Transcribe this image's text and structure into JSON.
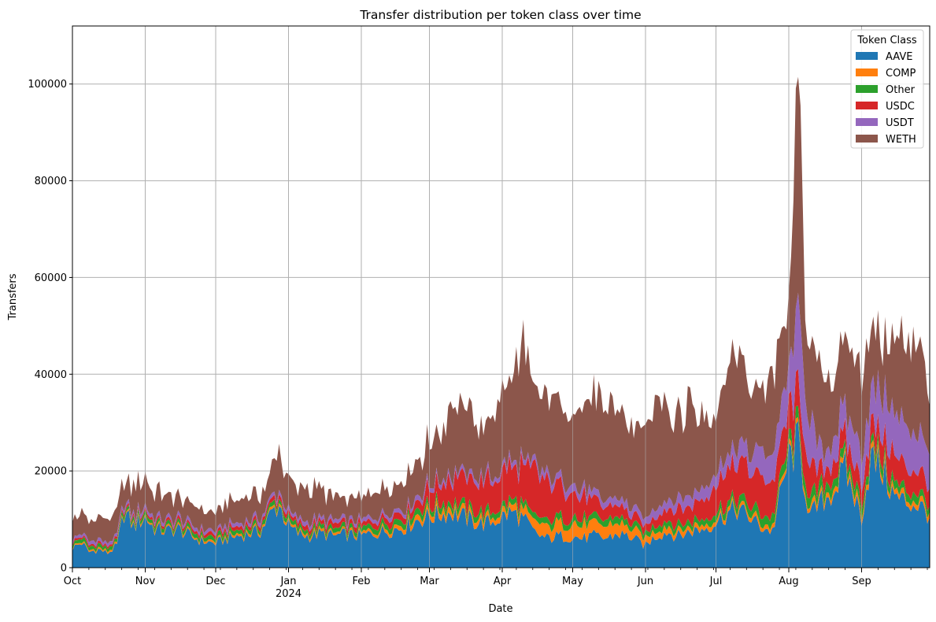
{
  "chart_data": {
    "type": "area",
    "stacked": true,
    "title": "Transfer distribution per token class over time",
    "xlabel": "Date",
    "ylabel": "Transfers",
    "x_range": [
      "2023-10-01",
      "2024-09-30"
    ],
    "ylim": [
      0,
      112000
    ],
    "grid": true,
    "legend": {
      "title": "Token Class",
      "placement": "top-right"
    },
    "y_ticks": [
      0,
      20000,
      40000,
      60000,
      80000,
      100000
    ],
    "y_tick_labels": [
      "0",
      "20000",
      "40000",
      "60000",
      "80000",
      "100000"
    ],
    "x_ticks": [
      {
        "date": "2023-10-01",
        "label": "Oct",
        "sublabel": ""
      },
      {
        "date": "2023-11-01",
        "label": "Nov",
        "sublabel": ""
      },
      {
        "date": "2023-12-01",
        "label": "Dec",
        "sublabel": ""
      },
      {
        "date": "2024-01-01",
        "label": "Jan",
        "sublabel": "2024"
      },
      {
        "date": "2024-02-01",
        "label": "Feb",
        "sublabel": ""
      },
      {
        "date": "2024-03-01",
        "label": "Mar",
        "sublabel": ""
      },
      {
        "date": "2024-04-01",
        "label": "Apr",
        "sublabel": ""
      },
      {
        "date": "2024-05-01",
        "label": "May",
        "sublabel": ""
      },
      {
        "date": "2024-06-01",
        "label": "Jun",
        "sublabel": ""
      },
      {
        "date": "2024-07-01",
        "label": "Jul",
        "sublabel": ""
      },
      {
        "date": "2024-08-01",
        "label": "Aug",
        "sublabel": ""
      },
      {
        "date": "2024-09-01",
        "label": "Sep",
        "sublabel": ""
      }
    ],
    "series": [
      {
        "name": "AAVE",
        "color": "#1f77b4",
        "points": [
          [
            "2023-10-01",
            4000
          ],
          [
            "2023-10-05",
            5200
          ],
          [
            "2023-10-08",
            3200
          ],
          [
            "2023-10-12",
            3800
          ],
          [
            "2023-10-16",
            3000
          ],
          [
            "2023-10-20",
            4500
          ],
          [
            "2023-10-23",
            11500
          ],
          [
            "2023-10-27",
            8500
          ],
          [
            "2023-11-01",
            10500
          ],
          [
            "2023-11-05",
            8000
          ],
          [
            "2023-11-10",
            7500
          ],
          [
            "2023-11-15",
            8000
          ],
          [
            "2023-11-20",
            6500
          ],
          [
            "2023-11-25",
            5500
          ],
          [
            "2023-12-01",
            5000
          ],
          [
            "2023-12-05",
            5800
          ],
          [
            "2023-12-10",
            6500
          ],
          [
            "2023-12-15",
            7000
          ],
          [
            "2023-12-20",
            7500
          ],
          [
            "2023-12-25",
            11500
          ],
          [
            "2023-12-28",
            13000
          ],
          [
            "2024-01-01",
            8500
          ],
          [
            "2024-01-05",
            7000
          ],
          [
            "2024-01-10",
            6500
          ],
          [
            "2024-01-15",
            7000
          ],
          [
            "2024-01-20",
            6500
          ],
          [
            "2024-01-25",
            6800
          ],
          [
            "2024-02-01",
            6500
          ],
          [
            "2024-02-05",
            7000
          ],
          [
            "2024-02-10",
            7500
          ],
          [
            "2024-02-15",
            8000
          ],
          [
            "2024-02-20",
            8500
          ],
          [
            "2024-02-25",
            10000
          ],
          [
            "2024-03-01",
            10500
          ],
          [
            "2024-03-05",
            11000
          ],
          [
            "2024-03-10",
            11500
          ],
          [
            "2024-03-15",
            10500
          ],
          [
            "2024-03-20",
            9500
          ],
          [
            "2024-03-25",
            9000
          ],
          [
            "2024-04-01",
            10500
          ],
          [
            "2024-04-05",
            11500
          ],
          [
            "2024-04-10",
            10000
          ],
          [
            "2024-04-15",
            7000
          ],
          [
            "2024-04-20",
            6000
          ],
          [
            "2024-04-25",
            6500
          ],
          [
            "2024-05-01",
            6500
          ],
          [
            "2024-05-05",
            6000
          ],
          [
            "2024-05-10",
            6500
          ],
          [
            "2024-05-15",
            6000
          ],
          [
            "2024-05-20",
            7000
          ],
          [
            "2024-05-25",
            6500
          ],
          [
            "2024-06-01",
            4500
          ],
          [
            "2024-06-05",
            6500
          ],
          [
            "2024-06-10",
            7500
          ],
          [
            "2024-06-15",
            6500
          ],
          [
            "2024-06-20",
            7500
          ],
          [
            "2024-06-25",
            8000
          ],
          [
            "2024-07-01",
            9500
          ],
          [
            "2024-07-05",
            11000
          ],
          [
            "2024-07-10",
            12000
          ],
          [
            "2024-07-15",
            10500
          ],
          [
            "2024-07-20",
            8500
          ],
          [
            "2024-07-25",
            7500
          ],
          [
            "2024-08-01",
            22500
          ],
          [
            "2024-08-05",
            25500
          ],
          [
            "2024-08-10",
            10500
          ],
          [
            "2024-08-15",
            13500
          ],
          [
            "2024-08-20",
            16000
          ],
          [
            "2024-08-25",
            20000
          ],
          [
            "2024-09-01",
            10500
          ],
          [
            "2024-09-05",
            22500
          ],
          [
            "2024-09-10",
            20000
          ],
          [
            "2024-09-15",
            14500
          ],
          [
            "2024-09-20",
            13500
          ],
          [
            "2024-09-25",
            13000
          ],
          [
            "2024-09-30",
            11000
          ]
        ]
      },
      {
        "name": "COMP",
        "color": "#ff7f0e",
        "points": [
          [
            "2023-10-01",
            300
          ],
          [
            "2023-11-01",
            400
          ],
          [
            "2023-12-01",
            400
          ],
          [
            "2024-01-01",
            500
          ],
          [
            "2024-02-01",
            500
          ],
          [
            "2024-03-01",
            1200
          ],
          [
            "2024-04-01",
            1000
          ],
          [
            "2024-04-20",
            2500
          ],
          [
            "2024-05-01",
            2800
          ],
          [
            "2024-05-20",
            2200
          ],
          [
            "2024-06-01",
            1500
          ],
          [
            "2024-07-01",
            800
          ],
          [
            "2024-08-01",
            900
          ],
          [
            "2024-09-01",
            1200
          ],
          [
            "2024-09-30",
            1000
          ]
        ]
      },
      {
        "name": "Other",
        "color": "#2ca02c",
        "points": [
          [
            "2023-10-01",
            700
          ],
          [
            "2023-11-01",
            800
          ],
          [
            "2023-12-01",
            800
          ],
          [
            "2024-01-01",
            900
          ],
          [
            "2024-02-01",
            900
          ],
          [
            "2024-03-01",
            1200
          ],
          [
            "2024-04-01",
            1200
          ],
          [
            "2024-05-01",
            1300
          ],
          [
            "2024-06-01",
            1200
          ],
          [
            "2024-07-01",
            1300
          ],
          [
            "2024-08-01",
            2200
          ],
          [
            "2024-09-01",
            1800
          ],
          [
            "2024-09-30",
            1500
          ]
        ]
      },
      {
        "name": "USDC",
        "color": "#d62728",
        "points": [
          [
            "2023-10-01",
            400
          ],
          [
            "2023-11-01",
            500
          ],
          [
            "2023-12-01",
            700
          ],
          [
            "2024-01-01",
            900
          ],
          [
            "2024-02-01",
            1000
          ],
          [
            "2024-02-25",
            1500
          ],
          [
            "2024-03-01",
            3500
          ],
          [
            "2024-03-10",
            5000
          ],
          [
            "2024-03-20",
            6000
          ],
          [
            "2024-04-01",
            6500
          ],
          [
            "2024-04-15",
            9000
          ],
          [
            "2024-05-01",
            5500
          ],
          [
            "2024-05-15",
            2500
          ],
          [
            "2024-06-01",
            1500
          ],
          [
            "2024-06-25",
            4000
          ],
          [
            "2024-07-01",
            6000
          ],
          [
            "2024-07-15",
            8000
          ],
          [
            "2024-08-01",
            6500
          ],
          [
            "2024-08-05",
            8000
          ],
          [
            "2024-08-15",
            3500
          ],
          [
            "2024-09-01",
            4000
          ],
          [
            "2024-09-15",
            5500
          ],
          [
            "2024-09-30",
            4500
          ]
        ]
      },
      {
        "name": "USDT",
        "color": "#9467bd",
        "points": [
          [
            "2023-10-01",
            600
          ],
          [
            "2023-11-01",
            700
          ],
          [
            "2023-12-01",
            700
          ],
          [
            "2024-01-01",
            800
          ],
          [
            "2024-02-01",
            800
          ],
          [
            "2024-03-01",
            900
          ],
          [
            "2024-04-01",
            1000
          ],
          [
            "2024-05-01",
            1500
          ],
          [
            "2024-06-01",
            1500
          ],
          [
            "2024-07-01",
            2500
          ],
          [
            "2024-07-15",
            4000
          ],
          [
            "2024-08-01",
            7000
          ],
          [
            "2024-08-05",
            16000
          ],
          [
            "2024-08-15",
            4000
          ],
          [
            "2024-09-01",
            7000
          ],
          [
            "2024-09-15",
            9000
          ],
          [
            "2024-09-30",
            8000
          ]
        ]
      },
      {
        "name": "WETH",
        "color": "#8c564b",
        "points": [
          [
            "2023-10-01",
            3500
          ],
          [
            "2023-10-05",
            5000
          ],
          [
            "2023-10-10",
            4000
          ],
          [
            "2023-10-15",
            4500
          ],
          [
            "2023-10-20",
            4500
          ],
          [
            "2023-10-25",
            5000
          ],
          [
            "2023-11-01",
            6000
          ],
          [
            "2023-11-05",
            5000
          ],
          [
            "2023-11-10",
            5000
          ],
          [
            "2023-11-15",
            4000
          ],
          [
            "2023-11-20",
            4000
          ],
          [
            "2023-11-25",
            4000
          ],
          [
            "2023-12-01",
            3500
          ],
          [
            "2023-12-05",
            4500
          ],
          [
            "2023-12-10",
            5000
          ],
          [
            "2023-12-15",
            5000
          ],
          [
            "2023-12-20",
            5000
          ],
          [
            "2023-12-25",
            6000
          ],
          [
            "2023-12-28",
            8000
          ],
          [
            "2024-01-01",
            6000
          ],
          [
            "2024-01-05",
            6000
          ],
          [
            "2024-01-10",
            7000
          ],
          [
            "2024-01-15",
            5500
          ],
          [
            "2024-01-20",
            5000
          ],
          [
            "2024-01-25",
            4500
          ],
          [
            "2024-02-01",
            4500
          ],
          [
            "2024-02-05",
            5000
          ],
          [
            "2024-02-10",
            5500
          ],
          [
            "2024-02-15",
            5500
          ],
          [
            "2024-02-20",
            6000
          ],
          [
            "2024-02-25",
            7000
          ],
          [
            "2024-03-01",
            9000
          ],
          [
            "2024-03-05",
            8500
          ],
          [
            "2024-03-10",
            15000
          ],
          [
            "2024-03-15",
            14000
          ],
          [
            "2024-03-20",
            12000
          ],
          [
            "2024-03-25",
            9000
          ],
          [
            "2024-04-01",
            17000
          ],
          [
            "2024-04-05",
            17000
          ],
          [
            "2024-04-10",
            24000
          ],
          [
            "2024-04-15",
            18000
          ],
          [
            "2024-04-20",
            16000
          ],
          [
            "2024-04-25",
            17000
          ],
          [
            "2024-05-01",
            14000
          ],
          [
            "2024-05-05",
            19000
          ],
          [
            "2024-05-10",
            20000
          ],
          [
            "2024-05-15",
            19000
          ],
          [
            "2024-05-20",
            18000
          ],
          [
            "2024-05-25",
            16000
          ],
          [
            "2024-06-01",
            17000
          ],
          [
            "2024-06-05",
            21000
          ],
          [
            "2024-06-10",
            20000
          ],
          [
            "2024-06-15",
            17000
          ],
          [
            "2024-06-20",
            19000
          ],
          [
            "2024-06-25",
            15000
          ],
          [
            "2024-07-01",
            12000
          ],
          [
            "2024-07-05",
            19000
          ],
          [
            "2024-07-10",
            18000
          ],
          [
            "2024-07-15",
            14000
          ],
          [
            "2024-07-20",
            13000
          ],
          [
            "2024-07-25",
            16000
          ],
          [
            "2024-08-01",
            13000
          ],
          [
            "2024-08-05",
            52000
          ],
          [
            "2024-08-08",
            14000
          ],
          [
            "2024-08-15",
            17000
          ],
          [
            "2024-08-20",
            12000
          ],
          [
            "2024-08-25",
            16000
          ],
          [
            "2024-09-01",
            17000
          ],
          [
            "2024-09-05",
            14000
          ],
          [
            "2024-09-10",
            12000
          ],
          [
            "2024-09-15",
            16000
          ],
          [
            "2024-09-20",
            18000
          ],
          [
            "2024-09-25",
            17000
          ],
          [
            "2024-09-30",
            13000
          ]
        ]
      }
    ]
  }
}
